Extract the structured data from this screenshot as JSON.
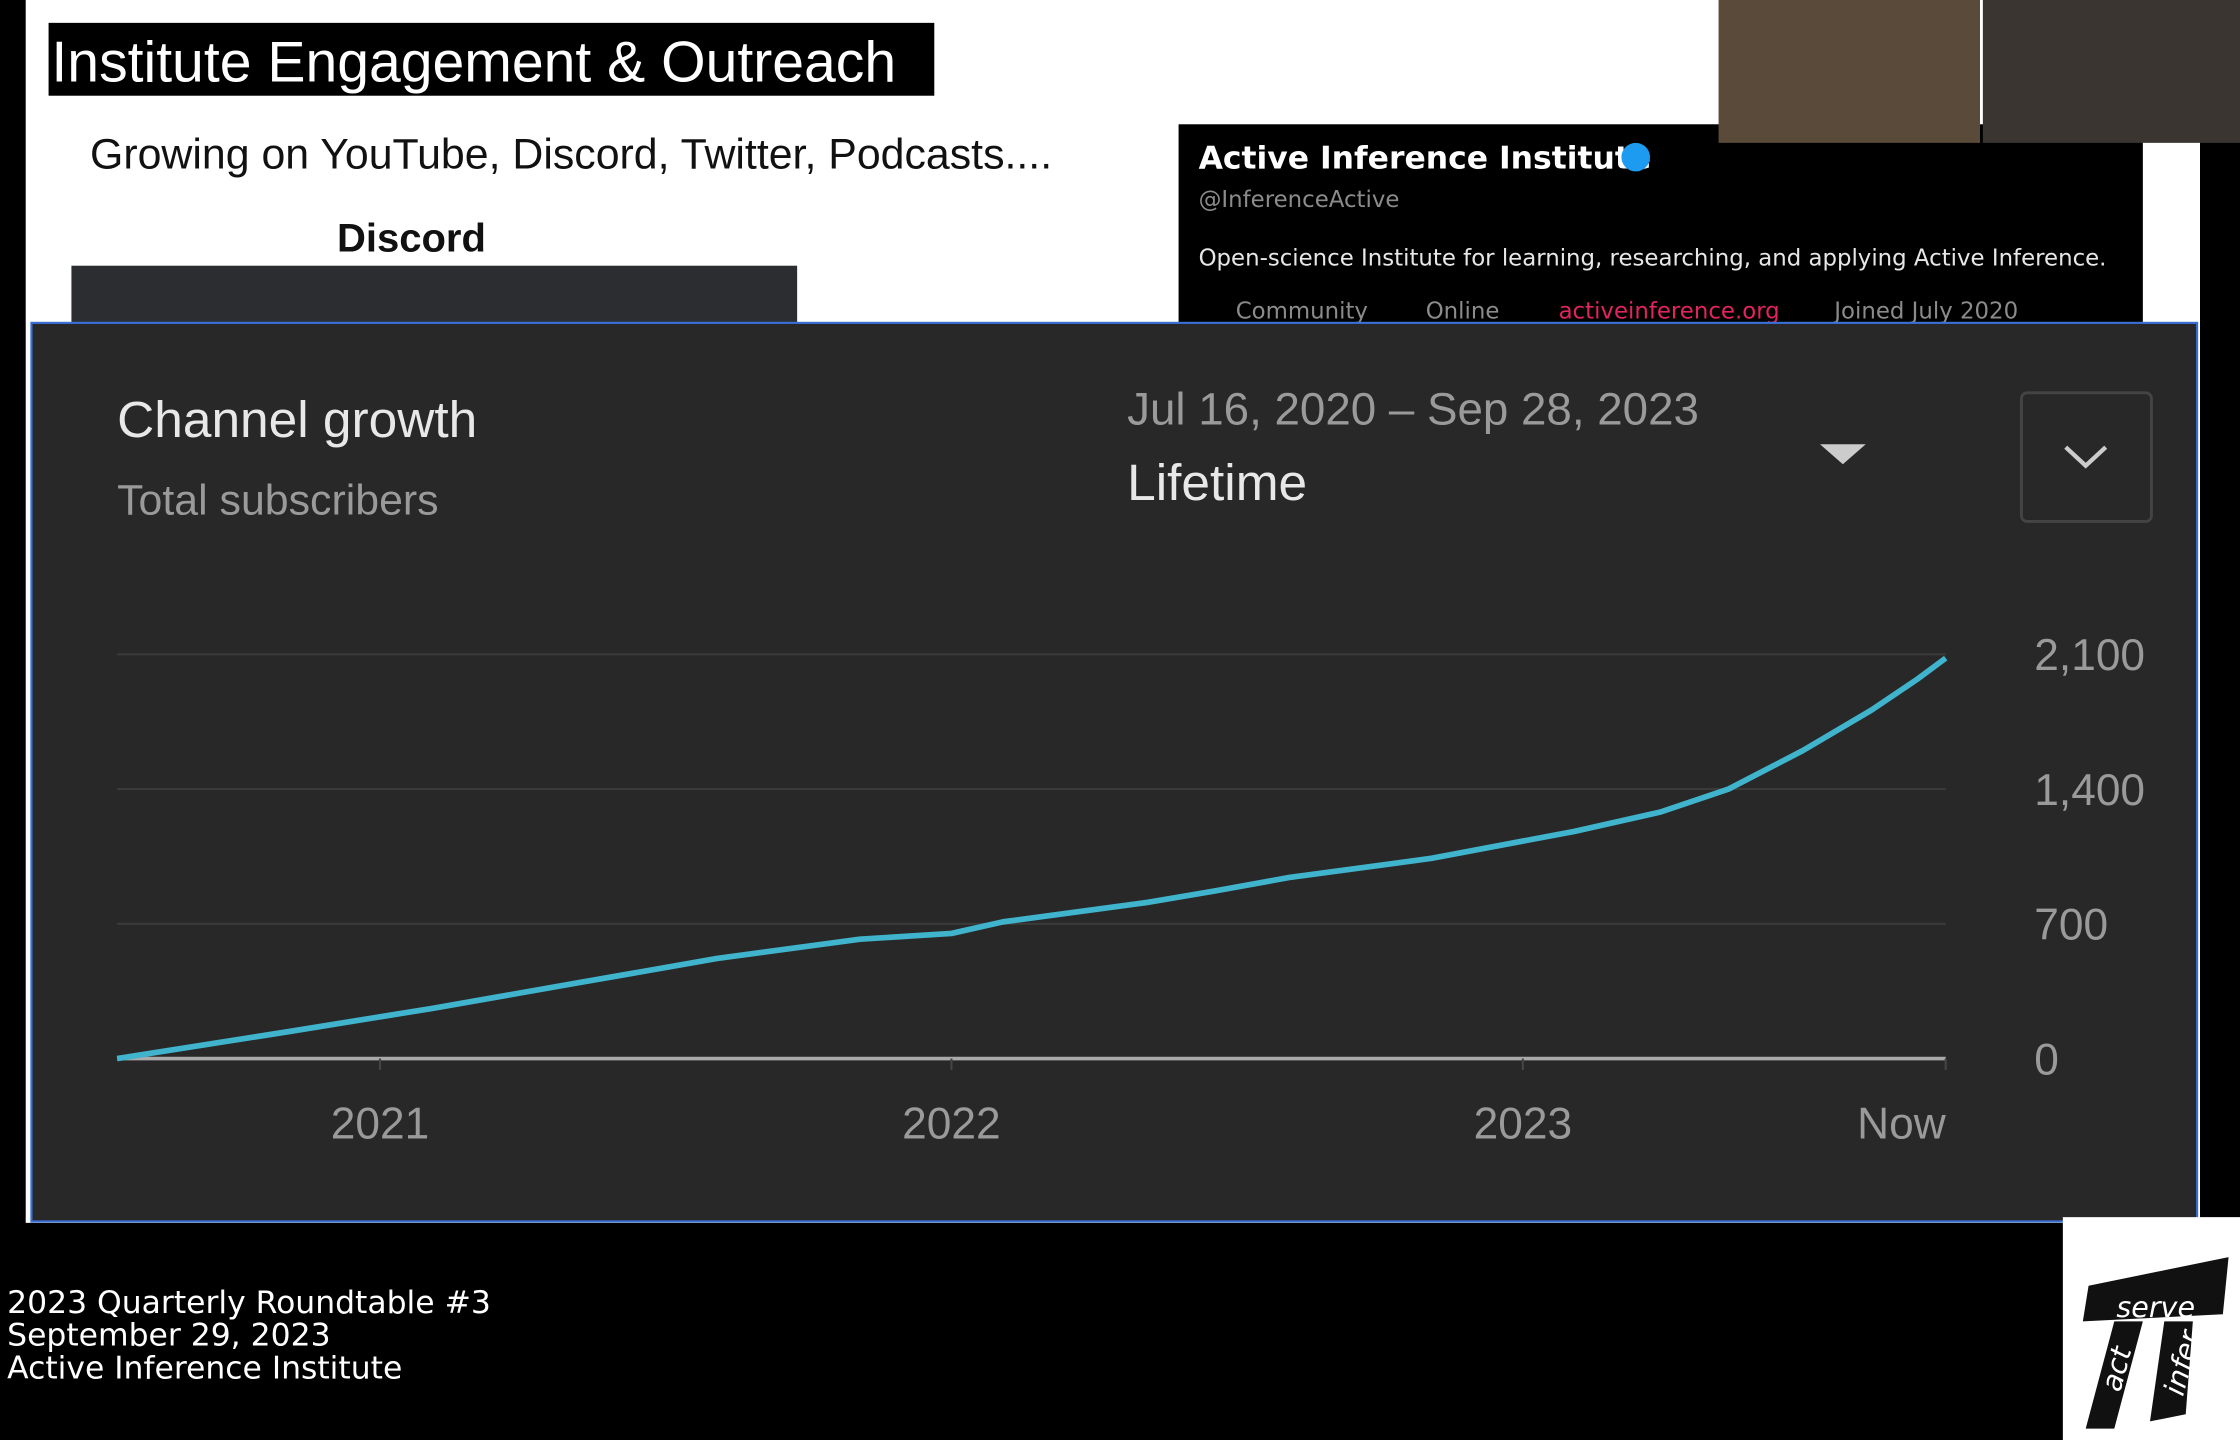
{
  "slide": {
    "title": "Institute Engagement & Outreach",
    "subtitle": "Growing on YouTube, Discord, Twitter, Podcasts....",
    "discord_label": "Discord"
  },
  "twitter": {
    "name": "Active Inference Institute",
    "handle": "@InferenceActive",
    "bio": "Open-science Institute for learning, researching, and applying Active Inference.",
    "category": "Community",
    "location": "Online",
    "link": "activeinference.org",
    "joined": "Joined July 2020"
  },
  "chart_data": {
    "type": "line",
    "title": "Channel growth",
    "subtitle": "Total subscribers",
    "date_range": "Jul 16, 2020 – Sep 28, 2023",
    "period": "Lifetime",
    "x": [
      2020.54,
      2020.84,
      2021.09,
      2021.34,
      2021.59,
      2021.84,
      2022.0,
      2022.09,
      2022.34,
      2022.46,
      2022.59,
      2022.84,
      2023.09,
      2023.24,
      2023.36,
      2023.49,
      2023.61,
      2023.69,
      2023.74
    ],
    "values": [
      0,
      140,
      260,
      390,
      520,
      620,
      650,
      710,
      810,
      870,
      940,
      1040,
      1180,
      1280,
      1400,
      1600,
      1810,
      1970,
      2080
    ],
    "color": "#3fb4cc",
    "xlim": [
      2020.54,
      2023.74
    ],
    "xticks": [
      2021,
      2022,
      2023,
      {
        "value": 2023.74,
        "label": "Now"
      }
    ],
    "ylim": [
      0,
      2100
    ],
    "yticks": [
      0,
      {
        "value": 700,
        "label": "700"
      },
      {
        "value": 1400,
        "label": "1,400"
      },
      {
        "value": 2100,
        "label": "2,100"
      }
    ],
    "grid": true
  },
  "footer": {
    "line1": "2023 Quarterly Roundtable #3",
    "line2": "September 29, 2023",
    "line3": "Active Inference Institute"
  },
  "logo": {
    "top": "serve",
    "left": "act",
    "right": "infer"
  }
}
